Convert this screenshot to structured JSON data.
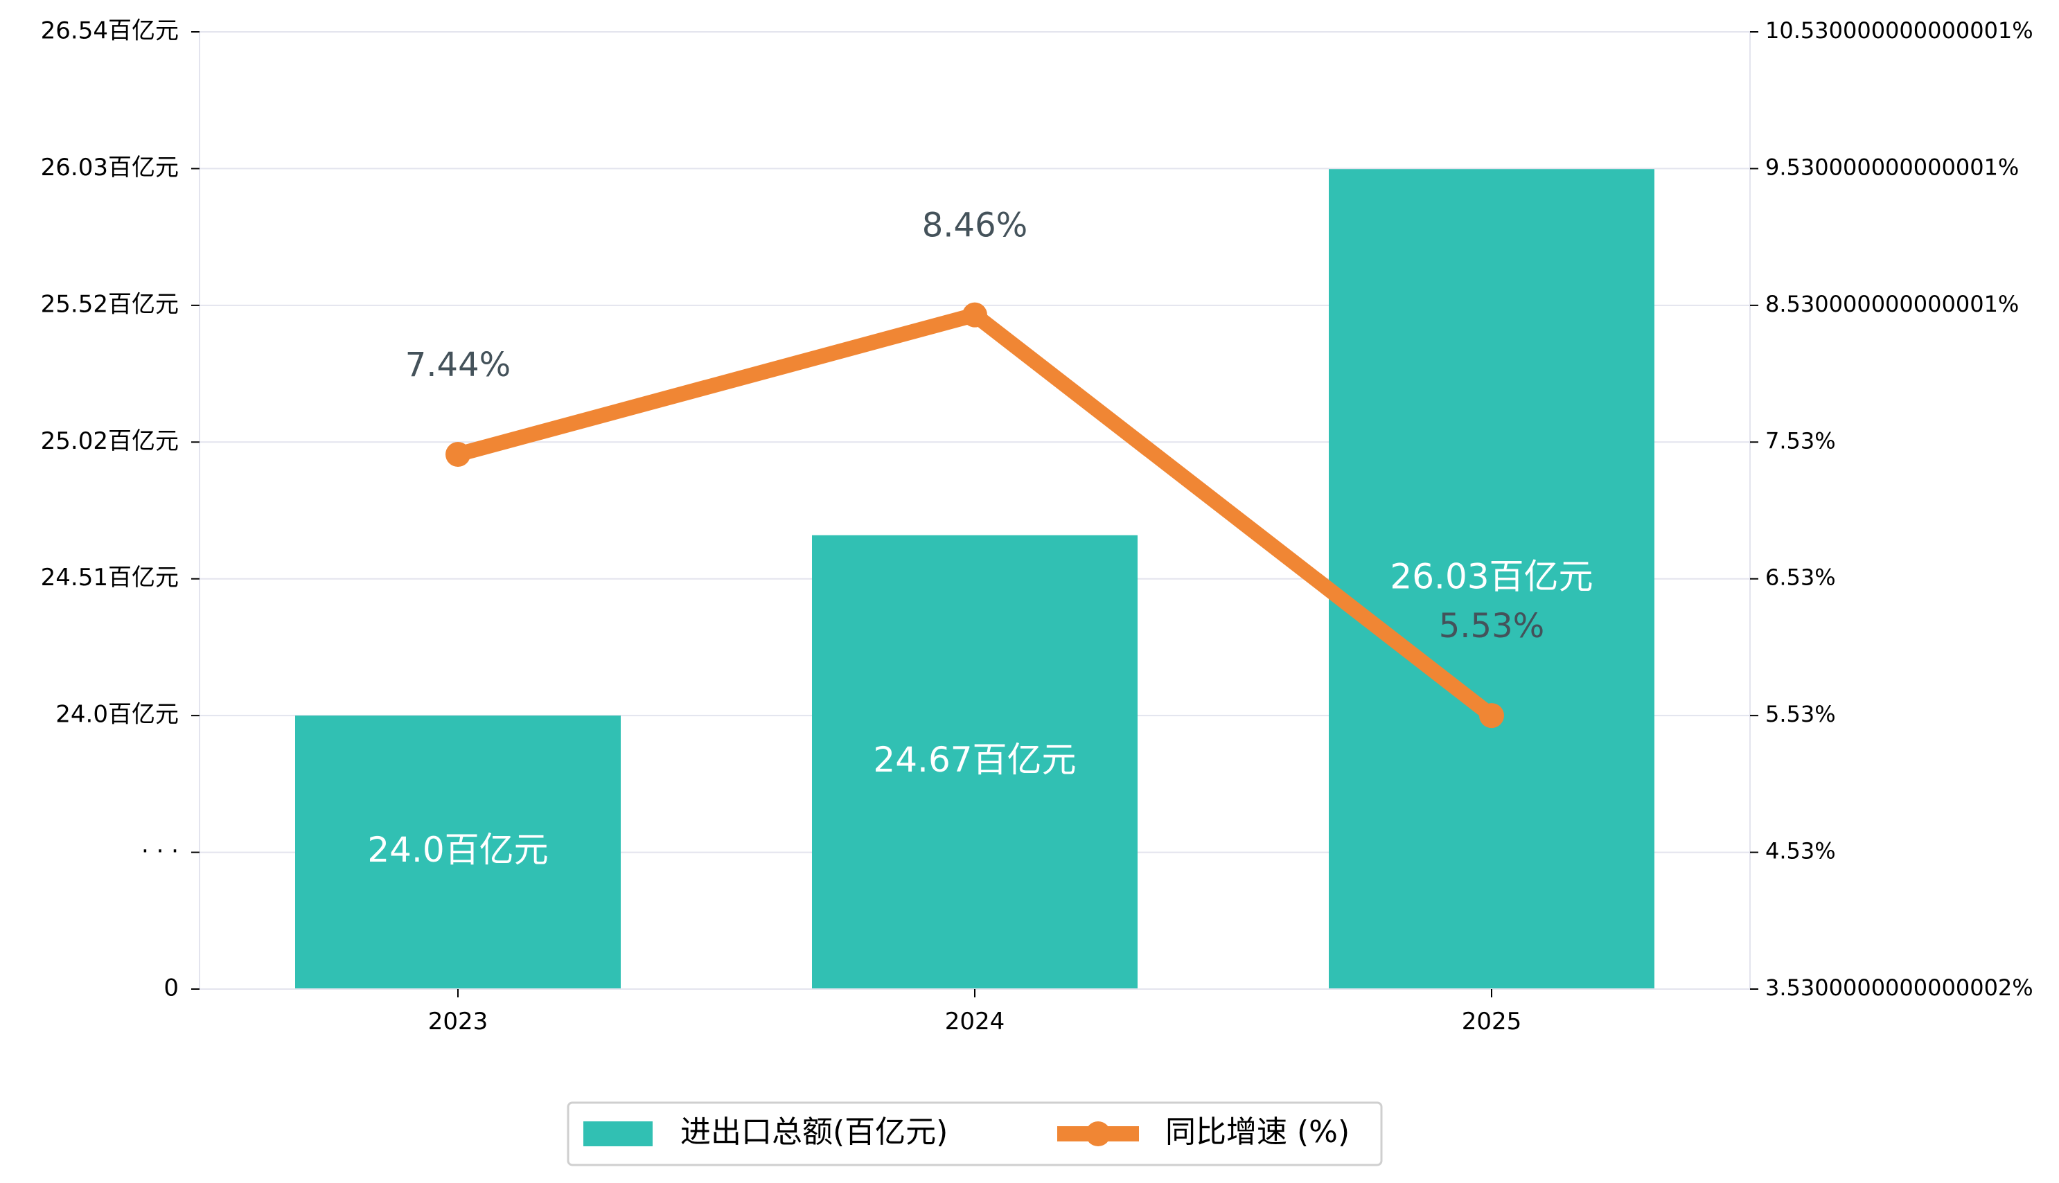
{
  "chart_data": {
    "type": "bar",
    "categories": [
      "2023",
      "2024",
      "2025"
    ],
    "series": [
      {
        "name": "进出口总额(百亿元)",
        "type": "bar",
        "axis": "left",
        "values": [
          24.0,
          24.67,
          26.03
        ],
        "value_labels": [
          "24.0百亿元",
          "24.67百亿元",
          "26.03百亿元"
        ],
        "color": "#31c0b3"
      },
      {
        "name": "同比增速 (%)",
        "type": "line",
        "axis": "right",
        "values": [
          7.44,
          8.46,
          5.53
        ],
        "value_labels": [
          "7.44%",
          "8.46%",
          "5.53%"
        ],
        "color": "#f08634"
      }
    ],
    "y_left": {
      "tick_labels": [
        "0",
        "· · ·",
        "24.0百亿元",
        "24.51百亿元",
        "25.02百亿元",
        "25.52百亿元",
        "26.03百亿元",
        "26.54百亿元"
      ],
      "tick_values": [
        null,
        null,
        24.0,
        24.51,
        25.02,
        25.52,
        26.03,
        26.54
      ],
      "broken_axis": true
    },
    "y_right": {
      "tick_labels": [
        "3.5300000000000002%",
        "4.53%",
        "5.53%",
        "6.53%",
        "7.53%",
        "8.530000000000001%",
        "9.530000000000001%",
        "10.530000000000001%"
      ],
      "tick_values": [
        3.53,
        4.53,
        5.53,
        6.53,
        7.53,
        8.53,
        9.53,
        10.53
      ],
      "ylim": [
        3.53,
        10.53
      ]
    },
    "grid": true,
    "legend_position": "bottom-center"
  }
}
